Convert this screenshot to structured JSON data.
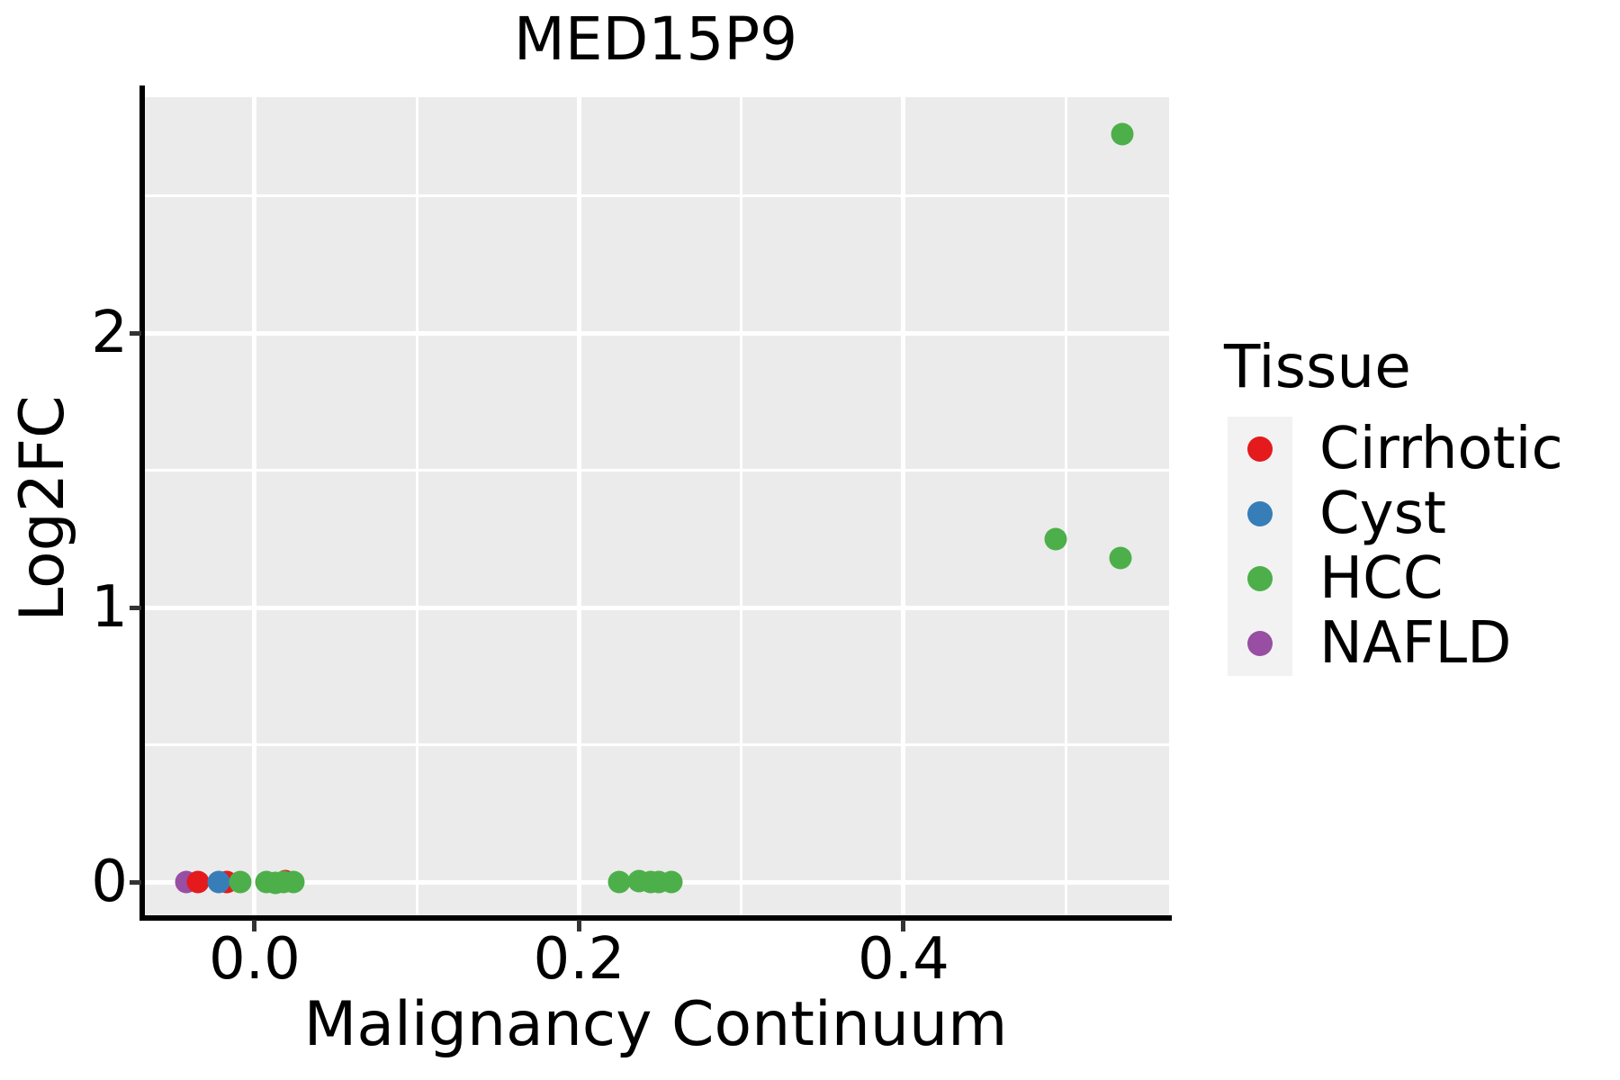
{
  "chart_data": {
    "type": "scatter",
    "title": "MED15P9",
    "xlabel": "Malignancy Continuum",
    "ylabel": "Log2FC",
    "x_range": [
      -0.0693,
      0.5637
    ],
    "y_range": [
      -0.131,
      2.859
    ],
    "x_ticks": {
      "values": [
        0.0,
        0.2,
        0.4
      ],
      "labels": [
        "0.0",
        "0.2",
        "0.4"
      ],
      "minor": [
        0.1,
        0.3,
        0.5
      ]
    },
    "y_ticks": {
      "values": [
        0,
        1,
        2
      ],
      "labels": [
        "0",
        "1",
        "2"
      ],
      "minor": [
        0.5,
        1.5,
        2.5
      ]
    },
    "grid": "major and minor white gridlines on gray panel",
    "panel_bg": "#ebebeb",
    "grid_color": "#ffffff",
    "axis_color": "#000000",
    "tick_color": "#333333",
    "palette": {
      "Cirrhotic": "#e41a1c",
      "Cyst": "#377eb8",
      "HCC": "#4daf4a",
      "NAFLD": "#984ea3"
    },
    "points": [
      {
        "tissue": "NAFLD",
        "x": -0.042,
        "y": 0.0
      },
      {
        "tissue": "Cirrhotic",
        "x": -0.035,
        "y": 0.0
      },
      {
        "tissue": "Cirrhotic",
        "x": -0.017,
        "y": 0.0
      },
      {
        "tissue": "Cyst",
        "x": -0.022,
        "y": 0.0
      },
      {
        "tissue": "Cirrhotic",
        "x": 0.019,
        "y": 0.004
      },
      {
        "tissue": "HCC",
        "x": -0.009,
        "y": 0.0
      },
      {
        "tissue": "HCC",
        "x": 0.007,
        "y": 0.0
      },
      {
        "tissue": "HCC",
        "x": 0.013,
        "y": -0.002
      },
      {
        "tissue": "HCC",
        "x": 0.018,
        "y": 0.0
      },
      {
        "tissue": "HCC",
        "x": 0.024,
        "y": 0.0
      },
      {
        "tissue": "HCC",
        "x": 0.225,
        "y": 0.0
      },
      {
        "tissue": "HCC",
        "x": 0.237,
        "y": 0.003
      },
      {
        "tissue": "HCC",
        "x": 0.244,
        "y": 0.0
      },
      {
        "tissue": "HCC",
        "x": 0.249,
        "y": 0.0
      },
      {
        "tissue": "HCC",
        "x": 0.257,
        "y": 0.0
      },
      {
        "tissue": "HCC",
        "x": 0.494,
        "y": 1.249
      },
      {
        "tissue": "HCC",
        "x": 0.534,
        "y": 1.18
      },
      {
        "tissue": "HCC",
        "x": 0.535,
        "y": 2.725
      }
    ],
    "legend": {
      "title": "Tissue",
      "position": "right",
      "key_bg": "#f2f2f2",
      "items": [
        {
          "label": "Cirrhotic"
        },
        {
          "label": "Cyst"
        },
        {
          "label": "HCC"
        },
        {
          "label": "NAFLD"
        }
      ]
    }
  }
}
